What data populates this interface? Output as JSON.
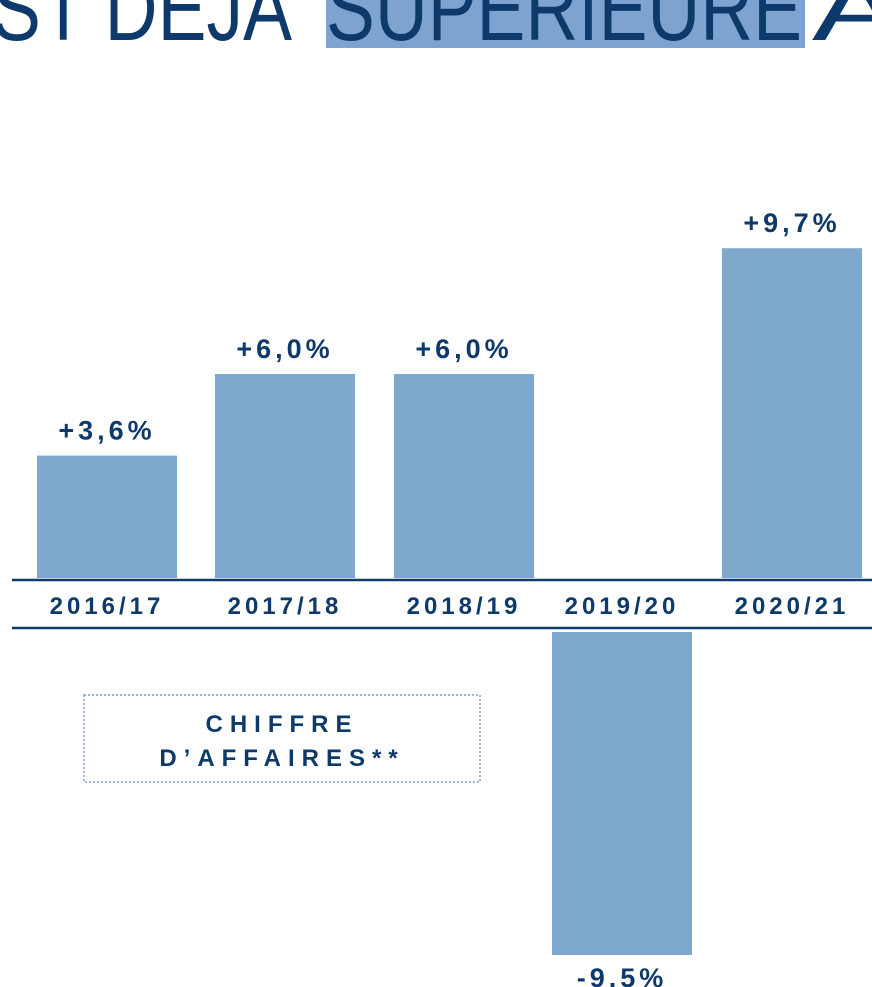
{
  "chart_data": {
    "type": "bar",
    "title": [
      "ST DEJA ",
      "SUPERIEURE",
      " A"
    ],
    "categories": [
      "2016/17",
      "2017/18",
      "2018/19",
      "2019/20",
      "2020/21"
    ],
    "values": [
      3.6,
      6.0,
      6.0,
      -9.5,
      9.7
    ],
    "value_labels": [
      "+3,6%",
      "+6,0%",
      "+6,0%",
      "-9,5%",
      "+9,7%"
    ],
    "color": "#7fa8cd",
    "annotation": [
      "CHIFFRE",
      "D’AFFAIRES**"
    ]
  }
}
